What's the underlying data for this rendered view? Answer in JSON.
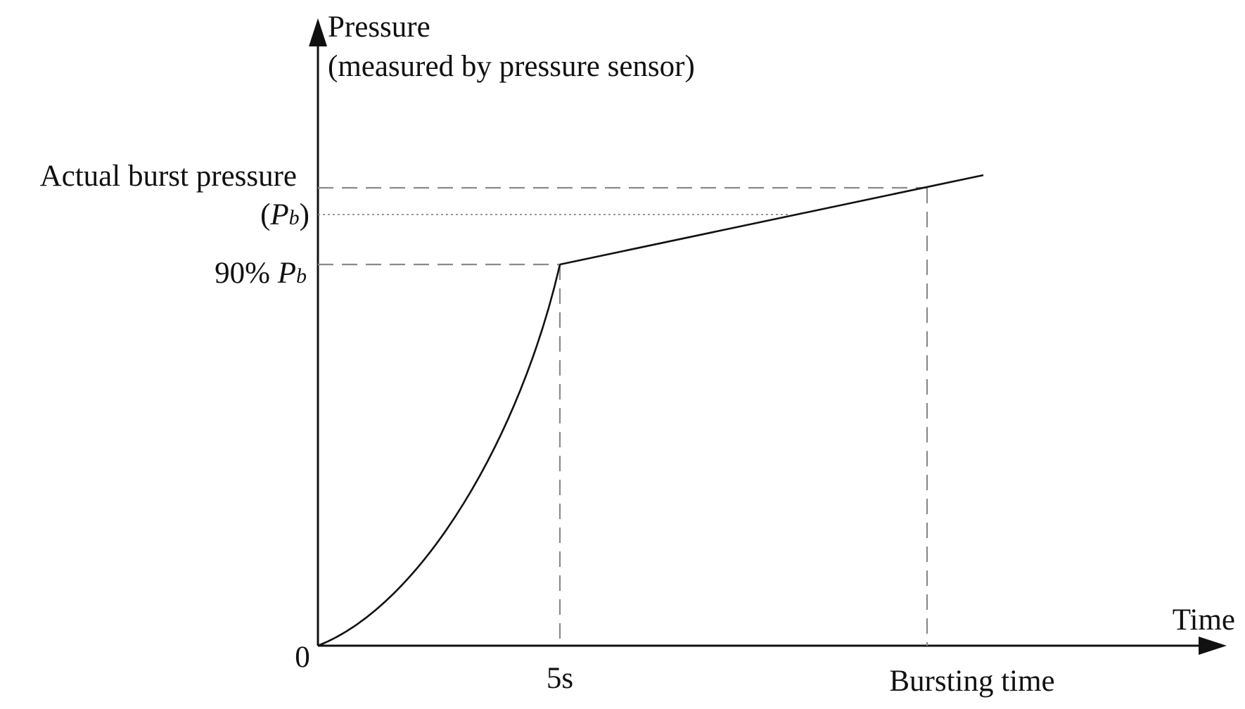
{
  "diagram": {
    "y_axis_label_line1": "Pressure",
    "y_axis_label_line2": "(measured by pressure sensor)",
    "x_axis_label": "Time",
    "origin_label": "0",
    "y_label_actual_burst": "Actual burst pressure",
    "y_label_pb_open": "(",
    "y_label_pb_symbol": "P",
    "y_label_pb_sub": "b",
    "y_label_pb_close": ")",
    "y_label_90_prefix": "90% ",
    "y_label_90_symbol": "P",
    "y_label_90_sub": "b",
    "x_label_5s": "5s",
    "x_label_bursting_time": "Bursting time"
  }
}
